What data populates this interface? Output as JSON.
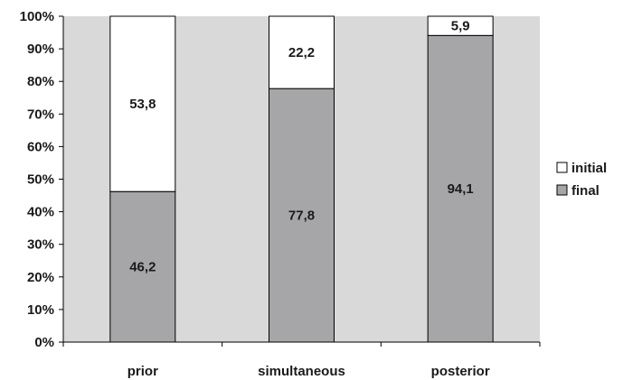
{
  "chart_data": {
    "type": "bar",
    "stacked": true,
    "percent": true,
    "categories": [
      "prior",
      "simultaneous",
      "posterior"
    ],
    "series": [
      {
        "name": "final",
        "values": [
          46.2,
          77.8,
          94.1
        ],
        "labels": [
          "46,2",
          "77,8",
          "94,1"
        ],
        "color": "#a6a6a8"
      },
      {
        "name": "initial",
        "values": [
          53.8,
          22.2,
          5.9
        ],
        "labels": [
          "53,8",
          "22,2",
          "5,9"
        ],
        "color": "#ffffff"
      }
    ],
    "ylim": [
      0,
      100
    ],
    "yticks": [
      0,
      10,
      20,
      30,
      40,
      50,
      60,
      70,
      80,
      90,
      100
    ],
    "ytick_labels": [
      "0%",
      "10%",
      "20%",
      "30%",
      "40%",
      "50%",
      "60%",
      "70%",
      "80%",
      "90%",
      "100%"
    ],
    "plot_background": "#d9d9d9",
    "grid": false,
    "legend": {
      "placement": "right",
      "order": [
        "initial",
        "final"
      ]
    }
  }
}
